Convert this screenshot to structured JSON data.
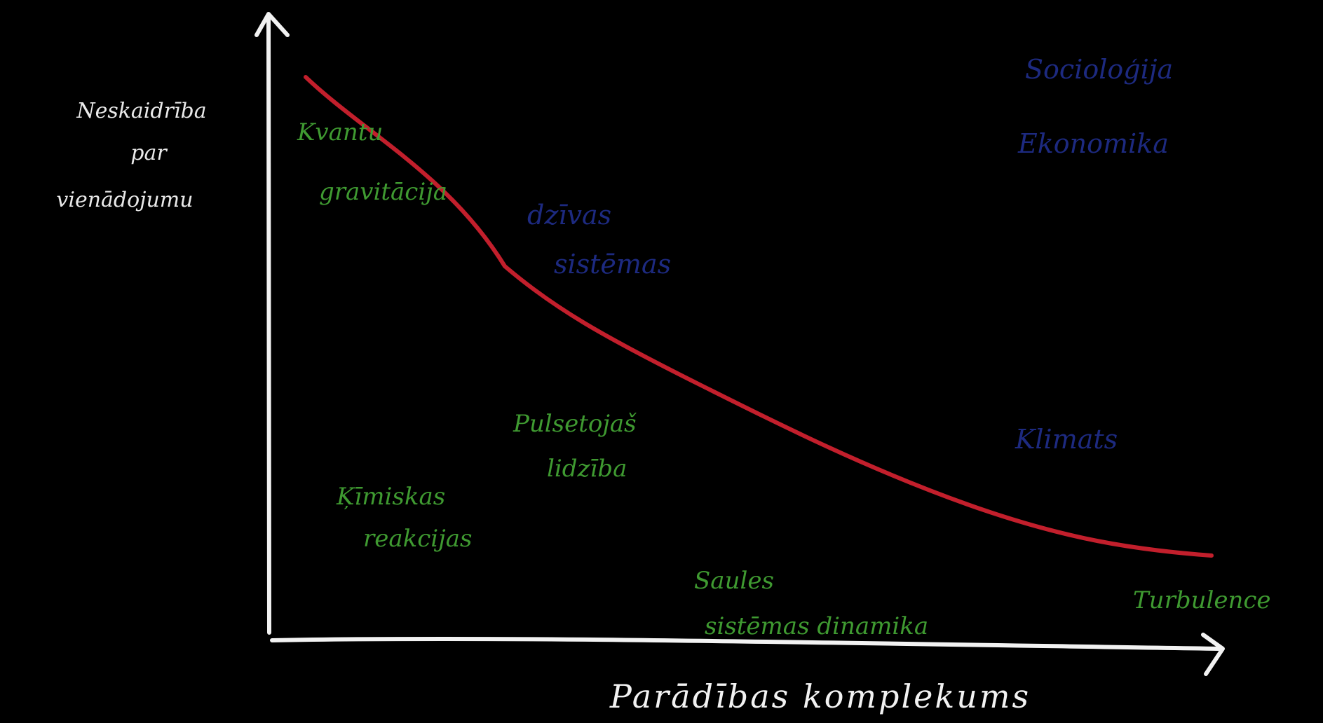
{
  "axes": {
    "y_label_lines": [
      "Neskaidrība",
      "par",
      "vienādojumu"
    ],
    "x_label": "Parādības komplekums"
  },
  "curve": {
    "color": "#c21f2c"
  },
  "green_labels": [
    {
      "id": "kvantu",
      "lines": [
        "Kvantu",
        "gravitācija"
      ]
    },
    {
      "id": "kimiskas",
      "lines": [
        "Ķīmiskas",
        "reakcijas"
      ]
    },
    {
      "id": "pulsetajs",
      "lines": [
        "Pulsetojaš",
        "lidzība"
      ]
    },
    {
      "id": "saules",
      "lines": [
        "Saules",
        "sistēmas dinamika"
      ]
    },
    {
      "id": "turbulence",
      "lines": [
        "Turbulence"
      ]
    }
  ],
  "blue_labels": [
    {
      "id": "dzivas",
      "lines": [
        "dzīvas",
        "sistēmas"
      ]
    },
    {
      "id": "sociologija",
      "lines": [
        "Socioloģija",
        "Ekonomika"
      ]
    },
    {
      "id": "klimats",
      "lines": [
        "Klimats"
      ]
    }
  ],
  "colors": {
    "background": "#000000",
    "axis": "#f2f2f2",
    "green": "#3f9a31",
    "blue": "#1d2a80",
    "curve": "#c21f2c"
  }
}
